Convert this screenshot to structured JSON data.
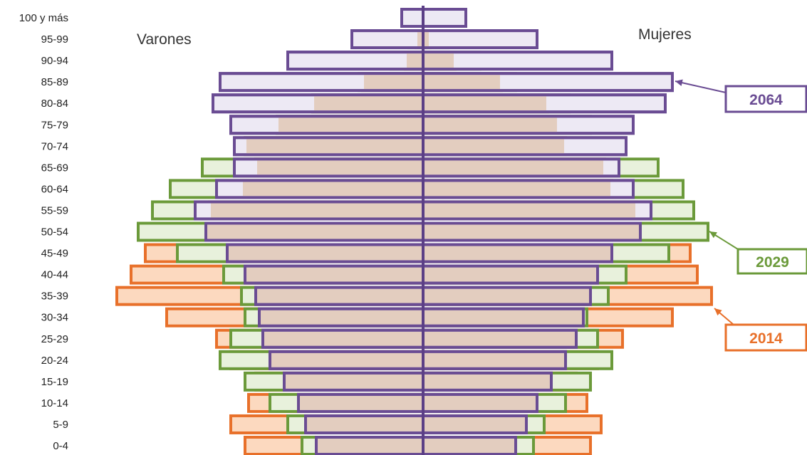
{
  "chart_data": {
    "type": "bar",
    "subtype": "population-pyramid",
    "categories": [
      "0-4",
      "5-9",
      "10-14",
      "15-19",
      "20-24",
      "25-29",
      "30-34",
      "35-39",
      "40-44",
      "45-49",
      "50-54",
      "55-59",
      "60-64",
      "65-69",
      "70-74",
      "75-79",
      "80-84",
      "85-89",
      "90-94",
      "95-99",
      "100 y más"
    ],
    "left_label": "Varones",
    "right_label": "Mujeres",
    "series": [
      {
        "name": "2014",
        "color": "#e8702a",
        "fill": "#fcd9bf",
        "varones": [
          250,
          270,
          245,
          235,
          270,
          290,
          360,
          430,
          410,
          390,
          385,
          300,
          255,
          235,
          250,
          205,
          155,
          85,
          25,
          10,
          3
        ],
        "mujeres": [
          235,
          250,
          230,
          215,
          245,
          280,
          350,
          405,
          385,
          375,
          345,
          300,
          265,
          255,
          200,
          190,
          175,
          110,
          45,
          10,
          3
        ]
      },
      {
        "name": "2029",
        "color": "#6b9a3a",
        "fill": "#e8f1dc",
        "varones": [
          170,
          190,
          215,
          250,
          285,
          270,
          250,
          255,
          280,
          345,
          400,
          380,
          355,
          310,
          250,
          205,
          155,
          90,
          45,
          20,
          5
        ],
        "mujeres": [
          155,
          170,
          200,
          235,
          265,
          245,
          230,
          260,
          285,
          345,
          400,
          380,
          365,
          330,
          285,
          235,
          205,
          130,
          80,
          35,
          5
        ]
      },
      {
        "name": "2064",
        "color": "#6a4c93",
        "fill": "#ede9f4",
        "varones": [
          150,
          165,
          175,
          195,
          215,
          225,
          230,
          235,
          250,
          275,
          305,
          320,
          290,
          265,
          265,
          270,
          295,
          285,
          190,
          100,
          30
        ],
        "mujeres": [
          130,
          145,
          160,
          180,
          200,
          215,
          225,
          235,
          245,
          265,
          305,
          320,
          295,
          275,
          285,
          295,
          340,
          350,
          265,
          160,
          60
        ]
      }
    ],
    "xlim": [
      -430,
      430
    ],
    "grid": false,
    "annotations": [
      {
        "text": "2064",
        "series": "2064"
      },
      {
        "text": "2029",
        "series": "2029"
      },
      {
        "text": "2014",
        "series": "2014"
      }
    ]
  }
}
